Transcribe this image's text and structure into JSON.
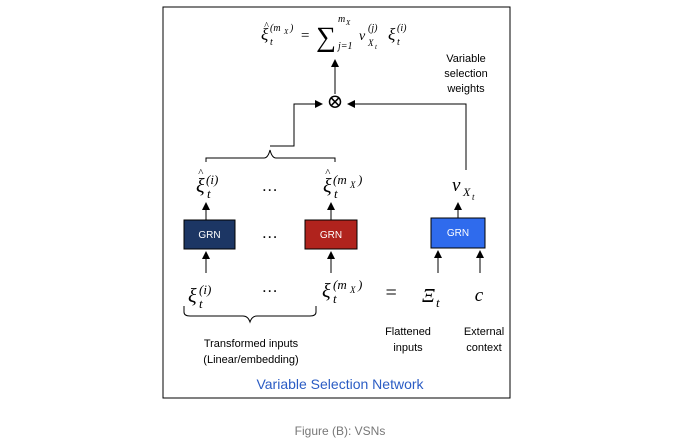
{
  "diagram": {
    "title": "Variable Selection Network",
    "formula": {
      "lhs_base": "ξ",
      "lhs_sub": "t",
      "lhs_sup": "(m",
      "lhs_sup_sub": "X",
      "lhs_sup_close": ")",
      "equals": "=",
      "sum_symbol": "∑",
      "sum_upper": "m",
      "sum_upper_sub": "X",
      "sum_lower": "j=1",
      "v_base": "v",
      "v_sub": "X",
      "v_sub_sub": "t",
      "v_sup": "(j)",
      "xi_base": "ξ",
      "xi_sub": "t",
      "xi_sup": "(i)"
    },
    "otimes": "⊗",
    "weights_label": [
      "Variable",
      "selection",
      "weights"
    ],
    "processed_i": {
      "base": "ξ",
      "sub": "t",
      "sup": "(i)"
    },
    "processed_mx": {
      "base": "ξ",
      "sub": "t",
      "sup": "(m",
      "sup_sub": "X",
      "sup_close": ")"
    },
    "ellipsis": "…",
    "grn_label": "GRN",
    "v_output": {
      "base": "v",
      "sub": "X",
      "sub_sub": "t"
    },
    "input_i": {
      "base": "ξ",
      "sub": "t",
      "sup": "(i)"
    },
    "input_mx": {
      "base": "ξ",
      "sub": "t",
      "sup": "(m",
      "sup_sub": "X",
      "sup_close": ")"
    },
    "equals": "=",
    "Xi": {
      "base": "Ξ",
      "sub": "t"
    },
    "context_symbol": "c",
    "transformed_label": [
      "Transformed inputs",
      "(Linear/embedding)"
    ],
    "flattened_label": [
      "Flattened",
      "inputs"
    ],
    "context_label": [
      "External",
      "context"
    ]
  },
  "caption": "Figure (B): VSNs",
  "colors": {
    "grn_navy": "#1c3664",
    "grn_red": "#b0231d",
    "grn_blue": "#2f6bed",
    "title_blue": "#2b5cc4",
    "caption_gray": "#777777"
  }
}
